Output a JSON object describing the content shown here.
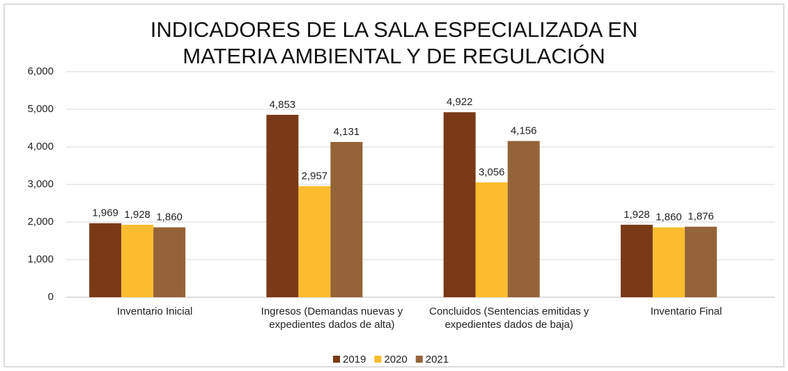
{
  "chart_data": {
    "type": "bar",
    "title": "INDICADORES DE LA SALA ESPECIALIZADA EN MATERIA AMBIENTAL Y DE REGULACIÓN",
    "categories": [
      "Inventario Inicial",
      "Ingresos (Demandas nuevas y expedientes dados de alta)",
      "Concluidos (Sentencias emitidas y expedientes dados de baja)",
      "Inventario Final"
    ],
    "series": [
      {
        "name": "2019",
        "color": "#7b3a17",
        "values": [
          1969,
          4853,
          4922,
          1928
        ],
        "value_labels": [
          "1,969",
          "4,853",
          "4,922",
          "1,928"
        ]
      },
      {
        "name": "2020",
        "color": "#fbbd2f",
        "values": [
          1928,
          2957,
          3056,
          1860
        ],
        "value_labels": [
          "1,928",
          "2,957",
          "3,056",
          "1,860"
        ]
      },
      {
        "name": "2021",
        "color": "#956338",
        "values": [
          1860,
          4131,
          4156,
          1876
        ],
        "value_labels": [
          "1,860",
          "4,131",
          "4,156",
          "1,876"
        ]
      }
    ],
    "ylim": [
      0,
      6000
    ],
    "yticks": [
      0,
      {
        "value": 1000,
        "label": "1,000"
      },
      {
        "value": 2000,
        "label": "2,000"
      },
      {
        "value": 3000,
        "label": "3,000"
      },
      {
        "value": 4000,
        "label": "4,000"
      },
      {
        "value": 5000,
        "label": "5,000"
      },
      {
        "value": 6000,
        "label": "6,000"
      }
    ],
    "grid": true,
    "legend": "bottom"
  }
}
